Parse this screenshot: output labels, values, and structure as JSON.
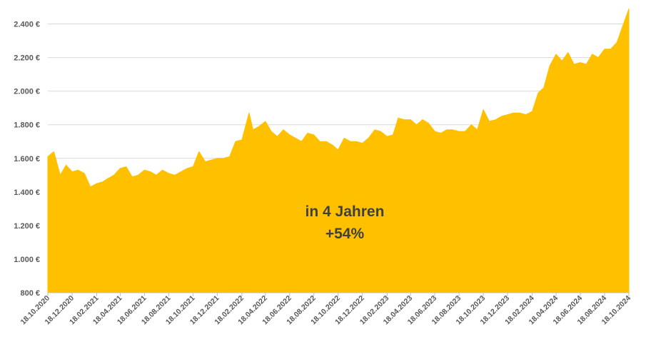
{
  "chart_data": {
    "type": "area",
    "title": "",
    "xlabel": "",
    "ylabel": "",
    "ylim": [
      800,
      2500
    ],
    "yticks": [
      800,
      1000,
      1200,
      1400,
      1600,
      1800,
      2000,
      2200,
      2400
    ],
    "ytick_labels": [
      "800 €",
      "1.000 €",
      "1.200 €",
      "1.400 €",
      "1.600 €",
      "1.800 €",
      "2.000 €",
      "2.200 €",
      "2.400 €"
    ],
    "xtick_labels": [
      "18.10.2020",
      "18.12.2020",
      "18.02.2021",
      "18.04.2021",
      "18.06.2021",
      "18.08.2021",
      "18.10.2021",
      "18.12.2021",
      "18.02.2022",
      "18.04.2022",
      "18.06.2022",
      "18.08.2022",
      "18.10.2022",
      "18.12.2022",
      "18.02.2023",
      "18.04.2023",
      "18.06.2023",
      "18.08.2023",
      "18.10.2023",
      "18.12.2023",
      "18.02.2024",
      "18.04.2024",
      "18.06.2024",
      "18.08.2024",
      "18.10.2024"
    ],
    "grid": true,
    "legend": "none",
    "fill_color": "#FFC000",
    "series": [
      {
        "x": [
          "18.10.2020",
          "02.11.2020",
          "18.11.2020",
          "03.12.2020",
          "18.12.2020",
          "02.01.2021",
          "18.01.2021",
          "02.02.2021",
          "18.02.2021",
          "05.03.2021",
          "18.03.2021",
          "02.04.2021",
          "18.04.2021",
          "03.05.2021",
          "18.05.2021",
          "02.06.2021",
          "18.06.2021",
          "03.07.2021",
          "18.07.2021",
          "02.08.2021",
          "18.08.2021",
          "02.09.2021",
          "18.09.2021",
          "03.10.2021",
          "18.10.2021",
          "02.11.2021",
          "18.11.2021",
          "03.12.2021",
          "18.12.2021",
          "02.01.2022",
          "18.01.2022",
          "02.02.2022",
          "18.02.2022",
          "08.03.2022",
          "18.03.2022",
          "02.04.2022",
          "18.04.2022",
          "03.05.2022",
          "18.05.2022",
          "02.06.2022",
          "18.06.2022",
          "03.07.2022",
          "18.07.2022",
          "02.08.2022",
          "18.08.2022",
          "02.09.2022",
          "18.09.2022",
          "03.10.2022",
          "18.10.2022",
          "02.11.2022",
          "18.11.2022",
          "03.12.2022",
          "18.12.2022",
          "02.01.2023",
          "18.01.2023",
          "02.02.2023",
          "18.02.2023",
          "05.03.2023",
          "18.03.2023",
          "02.04.2023",
          "18.04.2023",
          "03.05.2023",
          "18.05.2023",
          "02.06.2023",
          "18.06.2023",
          "03.07.2023",
          "18.07.2023",
          "02.08.2023",
          "18.08.2023",
          "02.09.2023",
          "18.09.2023",
          "03.10.2023",
          "18.10.2023",
          "02.11.2023",
          "18.11.2023",
          "03.12.2023",
          "18.12.2023",
          "02.01.2024",
          "18.01.2024",
          "02.02.2024",
          "18.02.2024",
          "04.03.2024",
          "18.03.2024",
          "02.04.2024",
          "18.04.2024",
          "03.05.2024",
          "18.05.2024",
          "02.06.2024",
          "18.06.2024",
          "03.07.2024",
          "18.07.2024",
          "02.08.2024",
          "18.08.2024",
          "02.09.2024",
          "18.09.2024",
          "03.10.2024",
          "18.10.2024"
        ],
        "values": [
          1610,
          1640,
          1500,
          1560,
          1520,
          1530,
          1510,
          1430,
          1450,
          1460,
          1480,
          1500,
          1540,
          1550,
          1490,
          1500,
          1530,
          1520,
          1500,
          1530,
          1510,
          1500,
          1520,
          1540,
          1550,
          1640,
          1580,
          1590,
          1600,
          1600,
          1610,
          1700,
          1710,
          1870,
          1770,
          1790,
          1820,
          1760,
          1730,
          1770,
          1740,
          1720,
          1700,
          1750,
          1740,
          1700,
          1700,
          1680,
          1650,
          1720,
          1700,
          1700,
          1690,
          1720,
          1770,
          1760,
          1730,
          1740,
          1840,
          1830,
          1830,
          1800,
          1830,
          1810,
          1760,
          1750,
          1770,
          1770,
          1760,
          1760,
          1800,
          1770,
          1890,
          1820,
          1830,
          1850,
          1860,
          1870,
          1870,
          1860,
          1880,
          1990,
          2020,
          2150,
          2220,
          2180,
          2230,
          2160,
          2170,
          2160,
          2220,
          2200,
          2250,
          2250,
          2290,
          2390,
          2490
        ]
      }
    ],
    "annotations": [
      "in 4 Jahren",
      "+54%"
    ]
  }
}
